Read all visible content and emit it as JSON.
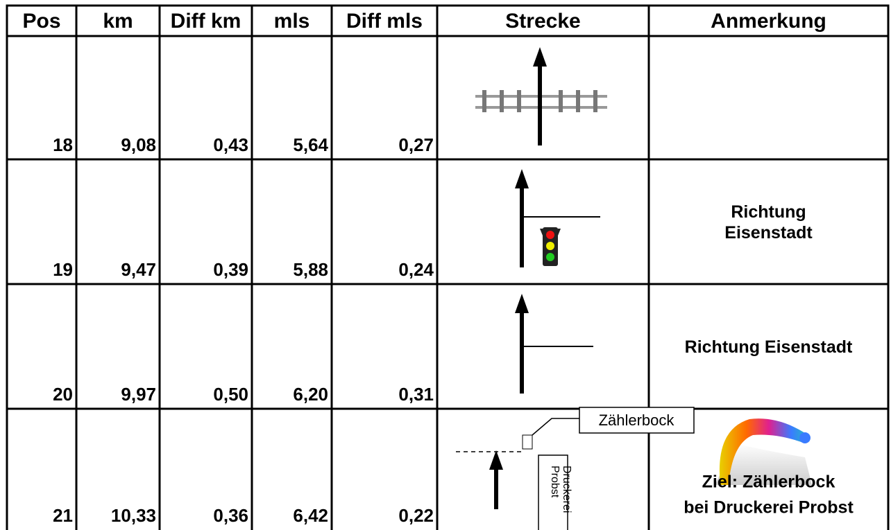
{
  "table": {
    "header": [
      "Pos",
      "km",
      "Diff km",
      "mls",
      "Diff mls",
      "Strecke",
      "Anmerkung"
    ],
    "rows": [
      {
        "cells": [
          "18",
          "9,08",
          "0,43",
          "5,64",
          "0,27"
        ]
      },
      {
        "cells": [
          "19",
          "9,47",
          "0,39",
          "5,88",
          "0,24"
        ],
        "note_lines": [
          "Richtung",
          "Eisenstadt"
        ]
      },
      {
        "cells": [
          "20",
          "9,97",
          "0,50",
          "6,20",
          "0,31"
        ],
        "note_lines": [
          "Richtung Eisenstadt"
        ]
      },
      {
        "cells": [
          "21",
          "10,33",
          "0,36",
          "6,42",
          "0,22"
        ],
        "note_lines": [
          "Ziel: Zählerbock",
          "bei Druckerei Probst"
        ],
        "diagram_labels": {
          "meter": "Zählerbock",
          "building": [
            "Druckerei",
            "Probst"
          ]
        }
      }
    ]
  }
}
